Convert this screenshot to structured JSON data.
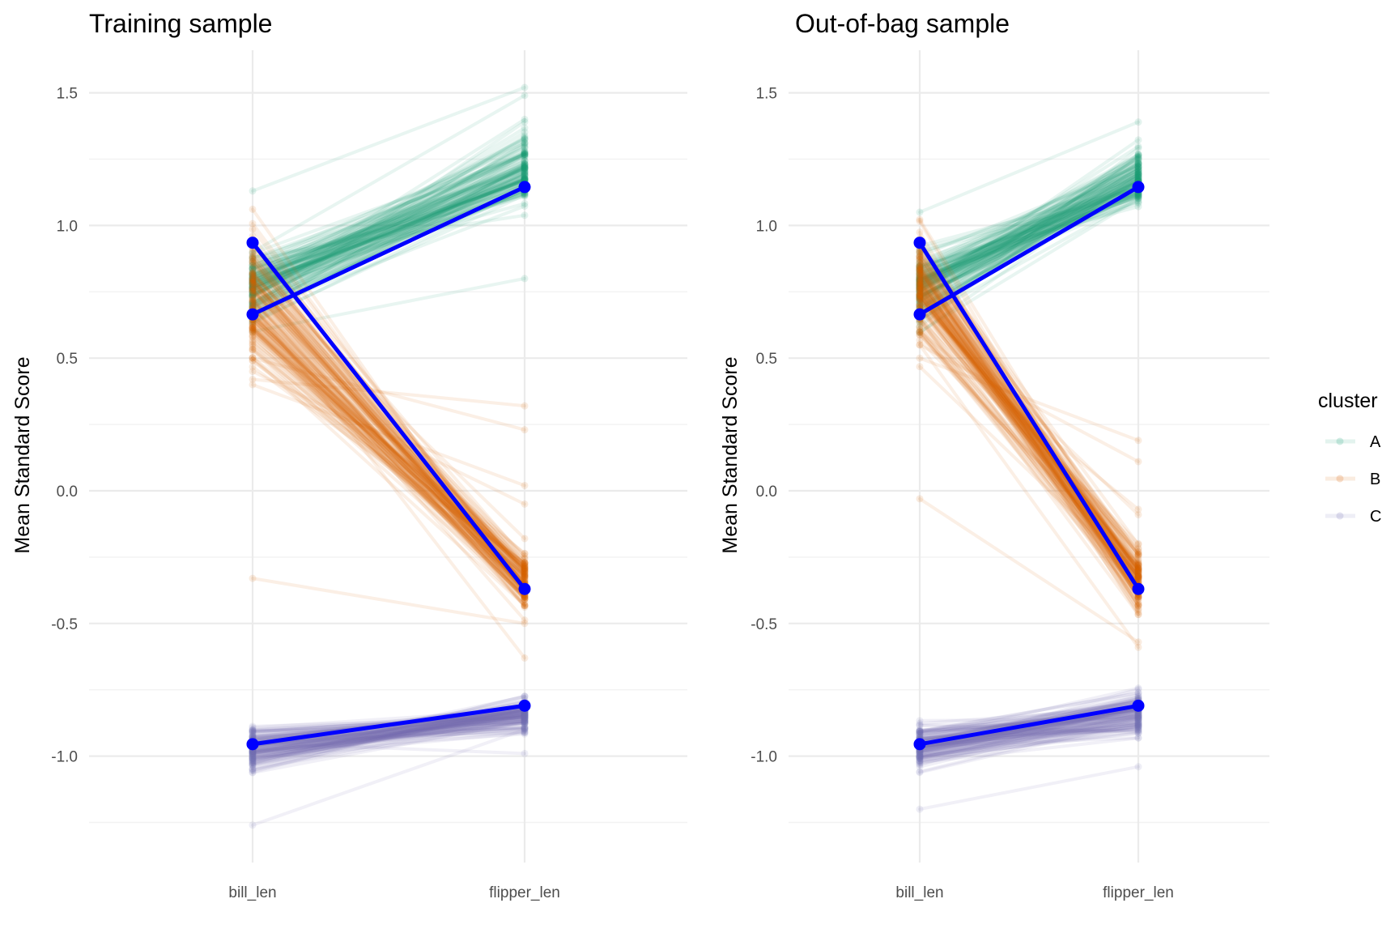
{
  "chart_data": [
    {
      "type": "line",
      "title": "Training sample",
      "xlabel": "",
      "ylabel": "Mean Standard Score",
      "categories": [
        "bill_len",
        "flipper_len"
      ],
      "yticks": [
        -1.0,
        -0.5,
        0.0,
        0.5,
        1.0,
        1.5
      ],
      "ytick_labels": [
        "-1.0",
        "-0.5",
        "0.0",
        "0.5",
        "1.0",
        "1.5"
      ],
      "ylim": [
        -1.35,
        1.65
      ],
      "grid": true,
      "mean_series": [
        {
          "name": "A",
          "values": [
            0.665,
            1.145
          ]
        },
        {
          "name": "B",
          "values": [
            0.935,
            -0.37
          ]
        },
        {
          "name": "C",
          "values": [
            -0.955,
            -0.81
          ]
        }
      ],
      "replicate_series": [
        {
          "name": "A",
          "count": 120,
          "bill_range": [
            0.55,
            0.95
          ],
          "flipper_range": [
            1.02,
            1.4
          ],
          "outliers": [
            [
              1.13,
              1.52
            ],
            [
              0.6,
              0.8
            ],
            [
              0.9,
              1.49
            ],
            [
              0.75,
              1.4
            ]
          ]
        },
        {
          "name": "B",
          "count": 120,
          "bill_range": [
            0.38,
            1.08
          ],
          "flipper_range": [
            -0.5,
            -0.18
          ],
          "outliers": [
            [
              -0.33,
              -0.5
            ],
            [
              0.42,
              0.32
            ],
            [
              0.5,
              0.23
            ],
            [
              0.4,
              0.02
            ],
            [
              0.45,
              -0.05
            ],
            [
              0.7,
              -0.63
            ]
          ]
        },
        {
          "name": "C",
          "count": 120,
          "bill_range": [
            -1.1,
            -0.85
          ],
          "flipper_range": [
            -0.93,
            -0.75
          ],
          "outliers": [
            [
              -1.26,
              -0.9
            ],
            [
              -0.95,
              -0.99
            ]
          ]
        }
      ]
    },
    {
      "type": "line",
      "title": "Out-of-bag sample",
      "xlabel": "",
      "ylabel": "Mean Standard Score",
      "categories": [
        "bill_len",
        "flipper_len"
      ],
      "yticks": [
        -1.0,
        -0.5,
        0.0,
        0.5,
        1.0,
        1.5
      ],
      "ytick_labels": [
        "-1.0",
        "-0.5",
        "0.0",
        "0.5",
        "1.0",
        "1.5"
      ],
      "ylim": [
        -1.35,
        1.65
      ],
      "grid": true,
      "mean_series": [
        {
          "name": "A",
          "values": [
            0.665,
            1.145
          ]
        },
        {
          "name": "B",
          "values": [
            0.935,
            -0.37
          ]
        },
        {
          "name": "C",
          "values": [
            -0.955,
            -0.81
          ]
        }
      ],
      "replicate_series": [
        {
          "name": "A",
          "count": 120,
          "bill_range": [
            0.58,
            0.95
          ],
          "flipper_range": [
            1.03,
            1.33
          ],
          "outliers": [
            [
              1.05,
              1.39
            ]
          ]
        },
        {
          "name": "B",
          "count": 120,
          "bill_range": [
            0.43,
            1.13
          ],
          "flipper_range": [
            -0.5,
            -0.18
          ],
          "outliers": [
            [
              -0.03,
              -0.57
            ],
            [
              0.5,
              0.19
            ],
            [
              0.55,
              0.11
            ],
            [
              0.6,
              -0.07
            ],
            [
              0.7,
              -0.09
            ],
            [
              0.55,
              -0.59
            ]
          ]
        },
        {
          "name": "C",
          "count": 120,
          "bill_range": [
            -1.07,
            -0.85
          ],
          "flipper_range": [
            -0.96,
            -0.72
          ],
          "outliers": [
            [
              -1.2,
              -1.04
            ]
          ]
        }
      ]
    }
  ],
  "legend": {
    "title": "cluster",
    "placement": "right",
    "items": [
      {
        "label": "A",
        "color": "#1B9E77"
      },
      {
        "label": "B",
        "color": "#D95F02"
      },
      {
        "label": "C",
        "color": "#7570B3"
      }
    ]
  },
  "colors": {
    "A": "#1B9E77",
    "B": "#D95F02",
    "C": "#7570B3",
    "mean": "#0000FF"
  }
}
